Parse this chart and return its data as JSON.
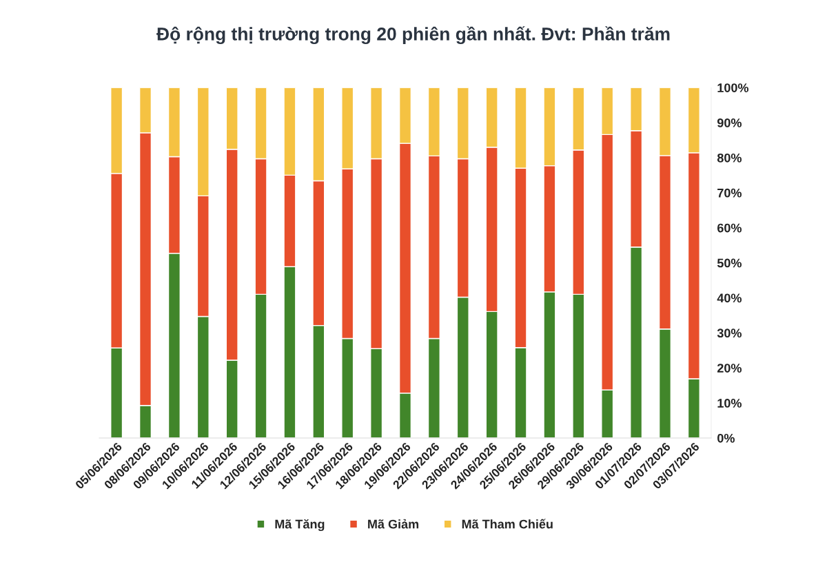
{
  "chart_data": {
    "type": "bar",
    "title": "Độ rộng thị trường trong 20 phiên gần nhất. Đvt: Phần trăm",
    "categories": [
      "05/06/2026",
      "08/06/2026",
      "09/06/2026",
      "10/06/2026",
      "11/06/2026",
      "12/06/2026",
      "15/06/2026",
      "16/06/2026",
      "17/06/2026",
      "18/06/2026",
      "19/06/2026",
      "22/06/2026",
      "23/06/2026",
      "24/06/2026",
      "25/06/2026",
      "26/06/2026",
      "29/06/2026",
      "30/06/2026",
      "01/07/2026",
      "02/07/2026",
      "03/07/2026"
    ],
    "stacked": true,
    "series": [
      {
        "name": "Mã Tăng",
        "color": "#41862a",
        "values": [
          25.7,
          9.3,
          52.7,
          34.7,
          22.2,
          41.0,
          48.9,
          32.1,
          28.4,
          25.5,
          12.8,
          28.4,
          40.2,
          36.1,
          25.8,
          41.7,
          41.0,
          13.7,
          54.5,
          31.1,
          16.9
        ]
      },
      {
        "name": "Mã Giảm",
        "color": "#e84f2b",
        "values": [
          49.8,
          77.8,
          27.6,
          34.4,
          60.2,
          38.7,
          26.1,
          41.3,
          48.4,
          54.2,
          71.3,
          52.1,
          39.5,
          46.9,
          51.2,
          36.0,
          41.2,
          72.9,
          33.2,
          49.5,
          64.5
        ]
      },
      {
        "name": "Mã Tham Chiếu",
        "color": "#f5c242",
        "values": [
          24.5,
          12.9,
          19.7,
          30.9,
          17.6,
          20.3,
          25.0,
          26.6,
          23.2,
          20.3,
          15.9,
          19.5,
          20.3,
          17.0,
          23.0,
          22.3,
          17.8,
          13.4,
          12.3,
          19.4,
          18.6
        ]
      }
    ],
    "ylim": [
      0,
      100
    ],
    "yticks": [
      {
        "value": 0,
        "label": "0%"
      },
      {
        "value": 10,
        "label": "10%"
      },
      {
        "value": 20,
        "label": "20%"
      },
      {
        "value": 30,
        "label": "30%"
      },
      {
        "value": 40,
        "label": "40%"
      },
      {
        "value": 50,
        "label": "50%"
      },
      {
        "value": 60,
        "label": "60%"
      },
      {
        "value": 70,
        "label": "70%"
      },
      {
        "value": 80,
        "label": "80%"
      },
      {
        "value": 90,
        "label": "90%"
      },
      {
        "value": 100,
        "label": "100%"
      }
    ],
    "grid": false,
    "legend": "bottom"
  }
}
